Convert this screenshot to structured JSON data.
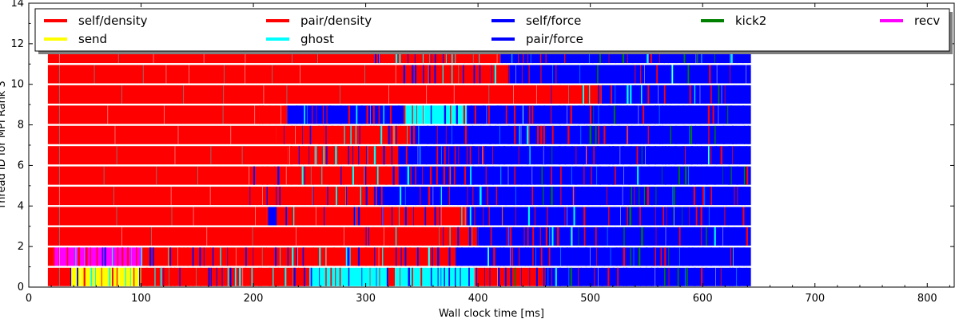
{
  "chart_data": {
    "type": "timeline",
    "xlabel": "Wall clock time [ms]",
    "ylabel": "Thread ID for MPI Rank 3",
    "xlim": [
      0,
      824
    ],
    "ylim": [
      0,
      14
    ],
    "xticks": [
      0,
      100,
      200,
      300,
      400,
      500,
      600,
      700,
      800
    ],
    "yticks": [
      0,
      2,
      4,
      6,
      8,
      10,
      12,
      14
    ],
    "grid": false,
    "legend_position": "top",
    "legend": [
      {
        "label": "self/density",
        "color": "#ff0000"
      },
      {
        "label": "pair/density",
        "color": "#ff0000"
      },
      {
        "label": "self/force",
        "color": "#0000ff"
      },
      {
        "label": "kick2",
        "color": "#008000"
      },
      {
        "label": "recv",
        "color": "#ff00ff"
      },
      {
        "label": "send",
        "color": "#ffff00"
      },
      {
        "label": "ghost",
        "color": "#00ffff"
      },
      {
        "label": "pair/force",
        "color": "#0000ff"
      }
    ],
    "threads": [
      {
        "thread": 0,
        "start": 17,
        "end": 643,
        "segments": [
          {
            "task": "self/density",
            "start": 17,
            "end": 37
          },
          {
            "task": "send",
            "start": 37,
            "end": 100
          },
          {
            "task": "pair/density",
            "start": 100,
            "end": 250
          },
          {
            "task": "ghost",
            "start": 250,
            "end": 320
          },
          {
            "task": "pair/density",
            "start": 320,
            "end": 326
          },
          {
            "task": "ghost",
            "start": 326,
            "end": 396
          },
          {
            "task": "pair/density",
            "start": 396,
            "end": 460
          },
          {
            "task": "pair/force",
            "start": 460,
            "end": 643
          }
        ]
      },
      {
        "thread": 1,
        "start": 17,
        "end": 643,
        "segments": [
          {
            "task": "pair/density",
            "start": 17,
            "end": 22
          },
          {
            "task": "recv",
            "start": 22,
            "end": 100
          },
          {
            "task": "pair/density",
            "start": 100,
            "end": 283
          },
          {
            "task": "pair/force",
            "start": 283,
            "end": 286
          },
          {
            "task": "pair/density",
            "start": 286,
            "end": 380
          },
          {
            "task": "pair/force",
            "start": 380,
            "end": 643
          }
        ]
      },
      {
        "thread": 2,
        "start": 17,
        "end": 643,
        "segments": [
          {
            "task": "self/density",
            "start": 17,
            "end": 300
          },
          {
            "task": "pair/density",
            "start": 300,
            "end": 400
          },
          {
            "task": "pair/force",
            "start": 400,
            "end": 643
          }
        ]
      },
      {
        "thread": 3,
        "start": 17,
        "end": 643,
        "segments": [
          {
            "task": "self/density",
            "start": 17,
            "end": 212
          },
          {
            "task": "pair/force",
            "start": 212,
            "end": 220
          },
          {
            "task": "pair/density",
            "start": 220,
            "end": 390
          },
          {
            "task": "pair/force",
            "start": 390,
            "end": 643
          }
        ]
      },
      {
        "thread": 4,
        "start": 17,
        "end": 643,
        "segments": [
          {
            "task": "self/density",
            "start": 17,
            "end": 190
          },
          {
            "task": "pair/density",
            "start": 190,
            "end": 310
          },
          {
            "task": "pair/force",
            "start": 310,
            "end": 643
          }
        ]
      },
      {
        "thread": 5,
        "start": 17,
        "end": 643,
        "segments": [
          {
            "task": "self/density",
            "start": 17,
            "end": 200
          },
          {
            "task": "pair/density",
            "start": 200,
            "end": 330
          },
          {
            "task": "pair/force",
            "start": 330,
            "end": 643
          }
        ]
      },
      {
        "thread": 6,
        "start": 17,
        "end": 643,
        "segments": [
          {
            "task": "self/density",
            "start": 17,
            "end": 230
          },
          {
            "task": "pair/density",
            "start": 230,
            "end": 330
          },
          {
            "task": "pair/force",
            "start": 330,
            "end": 643
          }
        ]
      },
      {
        "thread": 7,
        "start": 17,
        "end": 643,
        "segments": [
          {
            "task": "self/density",
            "start": 17,
            "end": 220
          },
          {
            "task": "pair/density",
            "start": 220,
            "end": 340
          },
          {
            "task": "pair/force",
            "start": 340,
            "end": 643
          }
        ]
      },
      {
        "thread": 8,
        "start": 17,
        "end": 643,
        "segments": [
          {
            "task": "self/density",
            "start": 17,
            "end": 205
          },
          {
            "task": "pair/density",
            "start": 205,
            "end": 230
          },
          {
            "task": "pair/force",
            "start": 230,
            "end": 334
          },
          {
            "task": "ghost",
            "start": 334,
            "end": 390
          },
          {
            "task": "pair/force",
            "start": 390,
            "end": 643
          }
        ]
      },
      {
        "thread": 9,
        "start": 17,
        "end": 643,
        "segments": [
          {
            "task": "self/density",
            "start": 17,
            "end": 465
          },
          {
            "task": "pair/density",
            "start": 465,
            "end": 510
          },
          {
            "task": "pair/force",
            "start": 510,
            "end": 643
          }
        ]
      },
      {
        "thread": 10,
        "start": 17,
        "end": 643,
        "segments": [
          {
            "task": "self/density",
            "start": 17,
            "end": 428
          },
          {
            "task": "pair/force",
            "start": 428,
            "end": 643
          }
        ]
      },
      {
        "thread": 11,
        "start": 17,
        "end": 643,
        "segments": [
          {
            "task": "self/density",
            "start": 17,
            "end": 308
          },
          {
            "task": "pair/density",
            "start": 308,
            "end": 420
          },
          {
            "task": "pair/force",
            "start": 420,
            "end": 643
          }
        ]
      }
    ]
  }
}
